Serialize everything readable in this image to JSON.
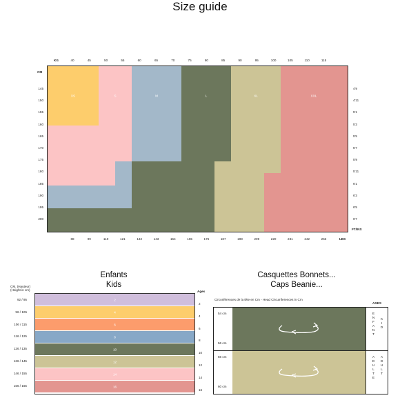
{
  "page": {
    "title": "Size guide"
  },
  "main_chart": {
    "kg_label": "KG",
    "kg_ticks": [
      "40",
      "45",
      "50",
      "55",
      "60",
      "65",
      "70",
      "75",
      "80",
      "85",
      "90",
      "95",
      "100",
      "105",
      "110",
      "115"
    ],
    "cm_label": "CM",
    "cm_ticks": [
      "145",
      "150",
      "155",
      "160",
      "165",
      "170",
      "175",
      "180",
      "185",
      "190",
      "195",
      "200"
    ],
    "ftins_ticks": [
      "4'9",
      "4'11",
      "5'1",
      "5'3",
      "5'5",
      "5'7",
      "5'9",
      "5'11",
      "6'1",
      "6'3",
      "6'5",
      "6'7"
    ],
    "ftins_label": "FT/INS",
    "lbs_ticks": [
      "88",
      "99",
      "110",
      "121",
      "132",
      "143",
      "154",
      "165",
      "176",
      "187",
      "198",
      "209",
      "220",
      "231",
      "242",
      "253"
    ],
    "lbs_label": "LBS",
    "sizes": [
      {
        "label": "XS",
        "color": "#fdcd6c"
      },
      {
        "label": "S",
        "color": "#fcc4c5"
      },
      {
        "label": "M",
        "color": "#a3b8c9"
      },
      {
        "label": "L",
        "color": "#6c775c"
      },
      {
        "label": "XL",
        "color": "#ccc496"
      },
      {
        "label": "XXL",
        "color": "#e39590"
      }
    ]
  },
  "kids": {
    "title_line1": "Enfants",
    "title_line2": "Kids",
    "col_header_line1": "CM. (Hauteur)",
    "col_header_line2": "(Height in cm)",
    "ages_header": "Ages",
    "rows": [
      {
        "range": "92 / 95",
        "label": "2",
        "age": "2",
        "color": "#d0bedc"
      },
      {
        "range": "96 / 105",
        "label": "4",
        "age": "4",
        "color": "#fdcd6c"
      },
      {
        "range": "106 / 115",
        "label": "6",
        "age": "6",
        "color": "#fc9c6c"
      },
      {
        "range": "116 / 125",
        "label": "8",
        "age": "8",
        "color": "#87a8c7"
      },
      {
        "range": "126 / 135",
        "label": "10",
        "age": "10",
        "color": "#6c775c"
      },
      {
        "range": "136 / 145",
        "label": "12",
        "age": "12",
        "color": "#ccc496"
      },
      {
        "range": "146 / 155",
        "label": "14",
        "age": "14",
        "color": "#fcc4c5"
      },
      {
        "range": "156 / 165",
        "label": "16",
        "age": "16",
        "color": "#e39590"
      }
    ]
  },
  "caps": {
    "title_line1": "Casquettes Bonnets...",
    "title_line2": "Caps Beanie...",
    "caption": "Circonférences de la tête en Cm - Head Circumferences in Cm",
    "ages_header": "AGES",
    "rows": [
      {
        "top": "54 cm",
        "bottom": "56 cm",
        "side": "ENFANT KID",
        "color": "#6c775c"
      },
      {
        "top": "56 cm",
        "bottom": "60 cm",
        "side": "ADULTE ADULT",
        "color": "#ccc496"
      }
    ]
  }
}
